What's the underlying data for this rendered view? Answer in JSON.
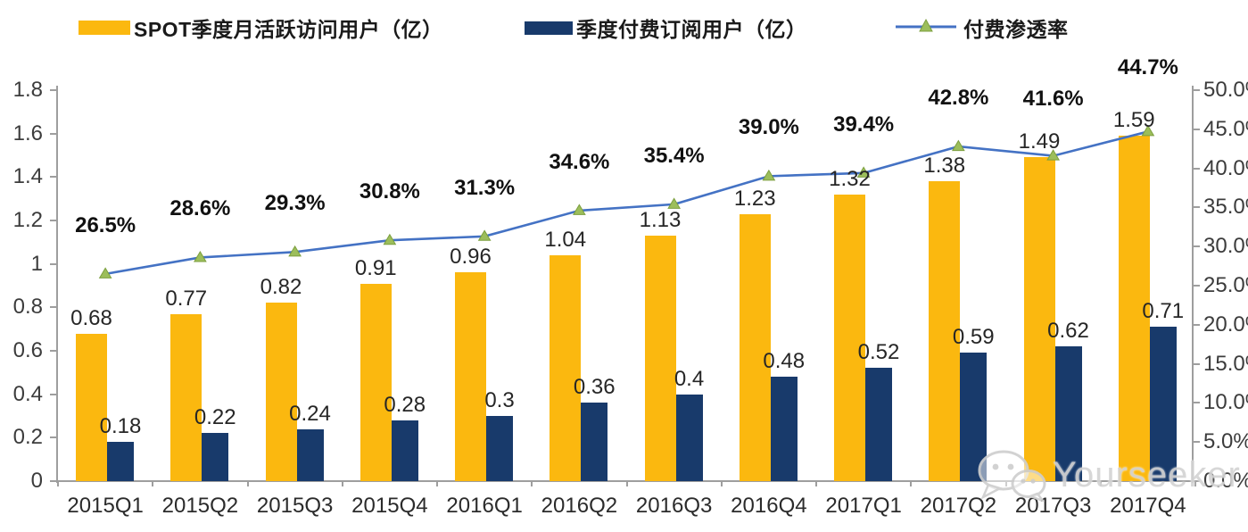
{
  "watermark": {
    "text": "Yourseeker",
    "icon": "wechat-icon"
  },
  "chart_data": {
    "type": "bar",
    "title": "",
    "categories": [
      "2015Q1",
      "2015Q2",
      "2015Q3",
      "2015Q4",
      "2016Q1",
      "2016Q2",
      "2016Q3",
      "2016Q4",
      "2017Q1",
      "2017Q2",
      "2017Q3",
      "2017Q4"
    ],
    "series": [
      {
        "name": "SPOT季度月活跃访问用户（亿）",
        "type": "bar",
        "axis": "left",
        "color": "#FBB80F",
        "values": [
          0.68,
          0.77,
          0.82,
          0.91,
          0.96,
          1.04,
          1.13,
          1.23,
          1.32,
          1.38,
          1.49,
          1.59
        ],
        "labels": [
          "0.68",
          "0.77",
          "0.82",
          "0.91",
          "0.96",
          "1.04",
          "1.13",
          "1.23",
          "1.32",
          "1.38",
          "1.49",
          "1.59"
        ]
      },
      {
        "name": "季度付费订阅用户（亿）",
        "type": "bar",
        "axis": "left",
        "color": "#183A6B",
        "values": [
          0.18,
          0.22,
          0.24,
          0.28,
          0.3,
          0.36,
          0.4,
          0.48,
          0.52,
          0.59,
          0.62,
          0.71
        ],
        "labels": [
          "0.18",
          "0.22",
          "0.24",
          "0.28",
          "0.3",
          "0.36",
          "0.4",
          "0.48",
          "0.52",
          "0.59",
          "0.62",
          "0.71"
        ]
      },
      {
        "name": "付费渗透率",
        "type": "line",
        "axis": "right",
        "color": "#4472C4",
        "marker": "triangle",
        "marker_color": "#9CBE5B",
        "marker_stroke": "#7C9F3F",
        "values": [
          26.5,
          28.6,
          29.3,
          30.8,
          31.3,
          34.6,
          35.4,
          39.0,
          39.4,
          42.8,
          41.6,
          44.7
        ],
        "labels": [
          "26.5%",
          "28.6%",
          "29.3%",
          "30.8%",
          "31.3%",
          "34.6%",
          "35.4%",
          "39.0%",
          "39.4%",
          "42.8%",
          "41.6%",
          "44.7%"
        ]
      }
    ],
    "left_axis": {
      "min": 0,
      "max": 1.8,
      "step": 0.2,
      "tick_labels": [
        "0",
        "0.2",
        "0.4",
        "0.6",
        "0.8",
        "1",
        "1.2",
        "1.4",
        "1.6",
        "1.8"
      ]
    },
    "right_axis": {
      "min": 0,
      "max": 50,
      "step": 5,
      "tick_labels": [
        "0.0%",
        "5.0%",
        "10.0%",
        "15.0%",
        "20.0%",
        "25.0%",
        "30.0%",
        "35.0%",
        "40.0%",
        "45.0%",
        "50.0%"
      ]
    },
    "grid": false,
    "legend_position": "top",
    "axis_color": "#9E9E9E"
  }
}
